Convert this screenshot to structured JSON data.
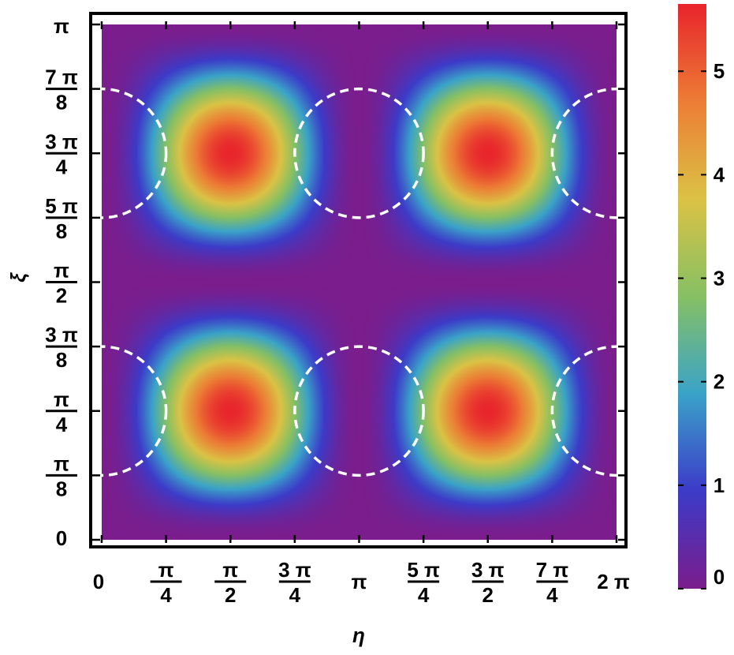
{
  "chart_data": {
    "type": "heatmap",
    "title": "",
    "xlabel": "η",
    "ylabel": "ξ",
    "xlim": [
      0,
      6.283185307179586
    ],
    "ylim": [
      0,
      3.141592653589793
    ],
    "function": "5.65 * (sin(η) * sin(2ξ))^2",
    "color_range": [
      0,
      5.65
    ],
    "colormap": [
      "#7b1d8c",
      "#3c3bc8",
      "#3aa3c8",
      "#86c064",
      "#dbc245",
      "#ec7d35",
      "#e8252c"
    ],
    "x_ticks": [
      {
        "value": 0,
        "num": "0",
        "den": ""
      },
      {
        "value": 0.7853981634,
        "num": "π",
        "den": "4"
      },
      {
        "value": 1.5707963268,
        "num": "π",
        "den": "2"
      },
      {
        "value": 2.3561944902,
        "num": "3 π",
        "den": "4"
      },
      {
        "value": 3.1415926536,
        "num": "π",
        "den": ""
      },
      {
        "value": 3.926990817,
        "num": "5 π",
        "den": "4"
      },
      {
        "value": 4.7123889804,
        "num": "3 π",
        "den": "2"
      },
      {
        "value": 5.4977871438,
        "num": "7 π",
        "den": "4"
      },
      {
        "value": 6.2831853072,
        "num": "2 π",
        "den": ""
      }
    ],
    "y_ticks": [
      {
        "value": 0,
        "num": "0",
        "den": ""
      },
      {
        "value": 0.3926990817,
        "num": "π",
        "den": "8"
      },
      {
        "value": 0.7853981634,
        "num": "π",
        "den": "4"
      },
      {
        "value": 1.1780972451,
        "num": "3 π",
        "den": "8"
      },
      {
        "value": 1.5707963268,
        "num": "π",
        "den": "2"
      },
      {
        "value": 1.9634954085,
        "num": "5 π",
        "den": "8"
      },
      {
        "value": 2.3561944902,
        "num": "3 π",
        "den": "4"
      },
      {
        "value": 2.7488935719,
        "num": "7 π",
        "den": "8"
      },
      {
        "value": 3.1415926536,
        "num": "π",
        "den": ""
      }
    ],
    "colorbar_ticks": [
      "0",
      "1",
      "2",
      "3",
      "4",
      "5"
    ],
    "annotations": [
      {
        "type": "dashed-circle",
        "center": [
          0,
          2.3561944902
        ],
        "radius": 0.3926990817,
        "color": "#ffffff"
      },
      {
        "type": "dashed-circle",
        "center": [
          3.1415926536,
          2.3561944902
        ],
        "radius": 0.3926990817,
        "color": "#ffffff"
      },
      {
        "type": "dashed-circle",
        "center": [
          6.2831853072,
          2.3561944902
        ],
        "radius": 0.3926990817,
        "color": "#ffffff"
      },
      {
        "type": "dashed-circle",
        "center": [
          0,
          0.7853981634
        ],
        "radius": 0.3926990817,
        "color": "#ffffff"
      },
      {
        "type": "dashed-circle",
        "center": [
          3.1415926536,
          0.7853981634
        ],
        "radius": 0.3926990817,
        "color": "#ffffff"
      },
      {
        "type": "dashed-circle",
        "center": [
          6.2831853072,
          0.7853981634
        ],
        "radius": 0.3926990817,
        "color": "#ffffff"
      }
    ],
    "grid": false,
    "legend": "colorbar-right"
  }
}
